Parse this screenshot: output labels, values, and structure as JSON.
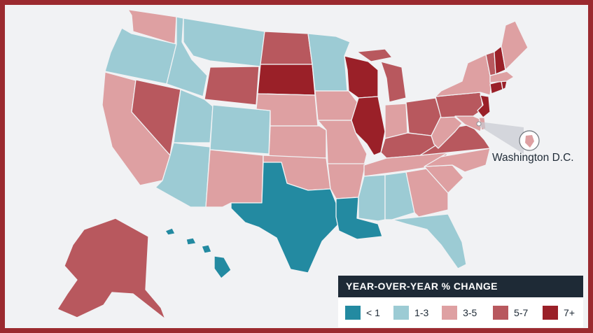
{
  "colors": {
    "lt1": "#238aa1",
    "r1to3": "#9ccbd4",
    "r3to5": "#dea0a2",
    "r5to7": "#b8585e",
    "gt7": "#9a2028",
    "frame": "#9b2a2f",
    "legend_header": "#1e2a36"
  },
  "state_bins": {
    "WA": "r3to5",
    "OR": "r1to3",
    "CA": "r3to5",
    "NV": "r5to7",
    "ID": "r1to3",
    "MT": "r1to3",
    "WY": "r5to7",
    "UT": "r1to3",
    "AZ": "r1to3",
    "CO": "r1to3",
    "NM": "r3to5",
    "ND": "r5to7",
    "SD": "gt7",
    "NE": "r3to5",
    "KS": "r3to5",
    "OK": "r3to5",
    "TX": "lt1",
    "MN": "r1to3",
    "IA": "r3to5",
    "MO": "r3to5",
    "AR": "r3to5",
    "LA": "lt1",
    "WI": "gt7",
    "IL": "gt7",
    "MI": "r5to7",
    "IN": "r3to5",
    "OH": "r5to7",
    "KY": "r5to7",
    "TN": "r3to5",
    "MS": "r1to3",
    "AL": "r1to3",
    "GA": "r3to5",
    "FL": "r1to3",
    "SC": "r3to5",
    "NC": "r3to5",
    "VA": "r5to7",
    "WV": "r3to5",
    "PA": "r5to7",
    "NY": "r3to5",
    "NJ": "gt7",
    "MD": "r3to5",
    "DE": "r3to5",
    "CT": "gt7",
    "RI": "gt7",
    "MA": "r3to5",
    "VT": "r5to7",
    "NH": "gt7",
    "ME": "r3to5",
    "AK": "r5to7",
    "HI": "lt1",
    "DC": "r3to5"
  },
  "callout": {
    "label": "Washington D.C."
  },
  "legend": {
    "title": "YEAR-OVER-YEAR % CHANGE",
    "items": [
      {
        "bin": "lt1",
        "label": "< 1"
      },
      {
        "bin": "r1to3",
        "label": "1-3"
      },
      {
        "bin": "r3to5",
        "label": "3-5"
      },
      {
        "bin": "r5to7",
        "label": "5-7"
      },
      {
        "bin": "gt7",
        "label": "7+"
      }
    ]
  }
}
